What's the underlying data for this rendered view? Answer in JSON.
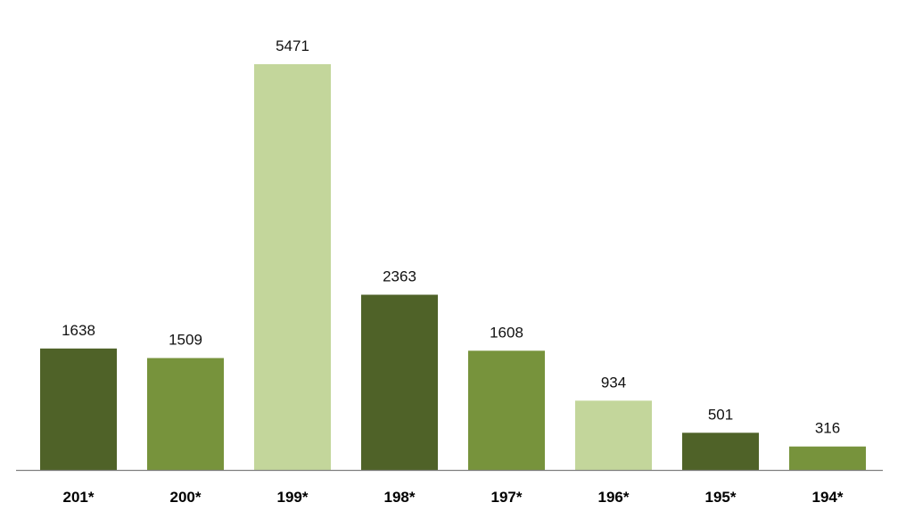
{
  "chart_data": {
    "type": "bar",
    "title": "",
    "xlabel": "",
    "ylabel": "",
    "categories": [
      "201*",
      "200*",
      "199*",
      "198*",
      "197*",
      "196*",
      "195*",
      "194*"
    ],
    "values": [
      1638,
      1509,
      5471,
      2363,
      1608,
      934,
      501,
      316
    ],
    "ylim": [
      0,
      5471
    ],
    "grid": false,
    "legend": "none",
    "data_labels": true,
    "bar_colors": [
      "#4f6228",
      "#77933c",
      "#c3d69b",
      "#4f6228",
      "#77933c",
      "#c3d69b",
      "#4f6228",
      "#77933c"
    ],
    "axis_color": "#7f7f7f"
  }
}
